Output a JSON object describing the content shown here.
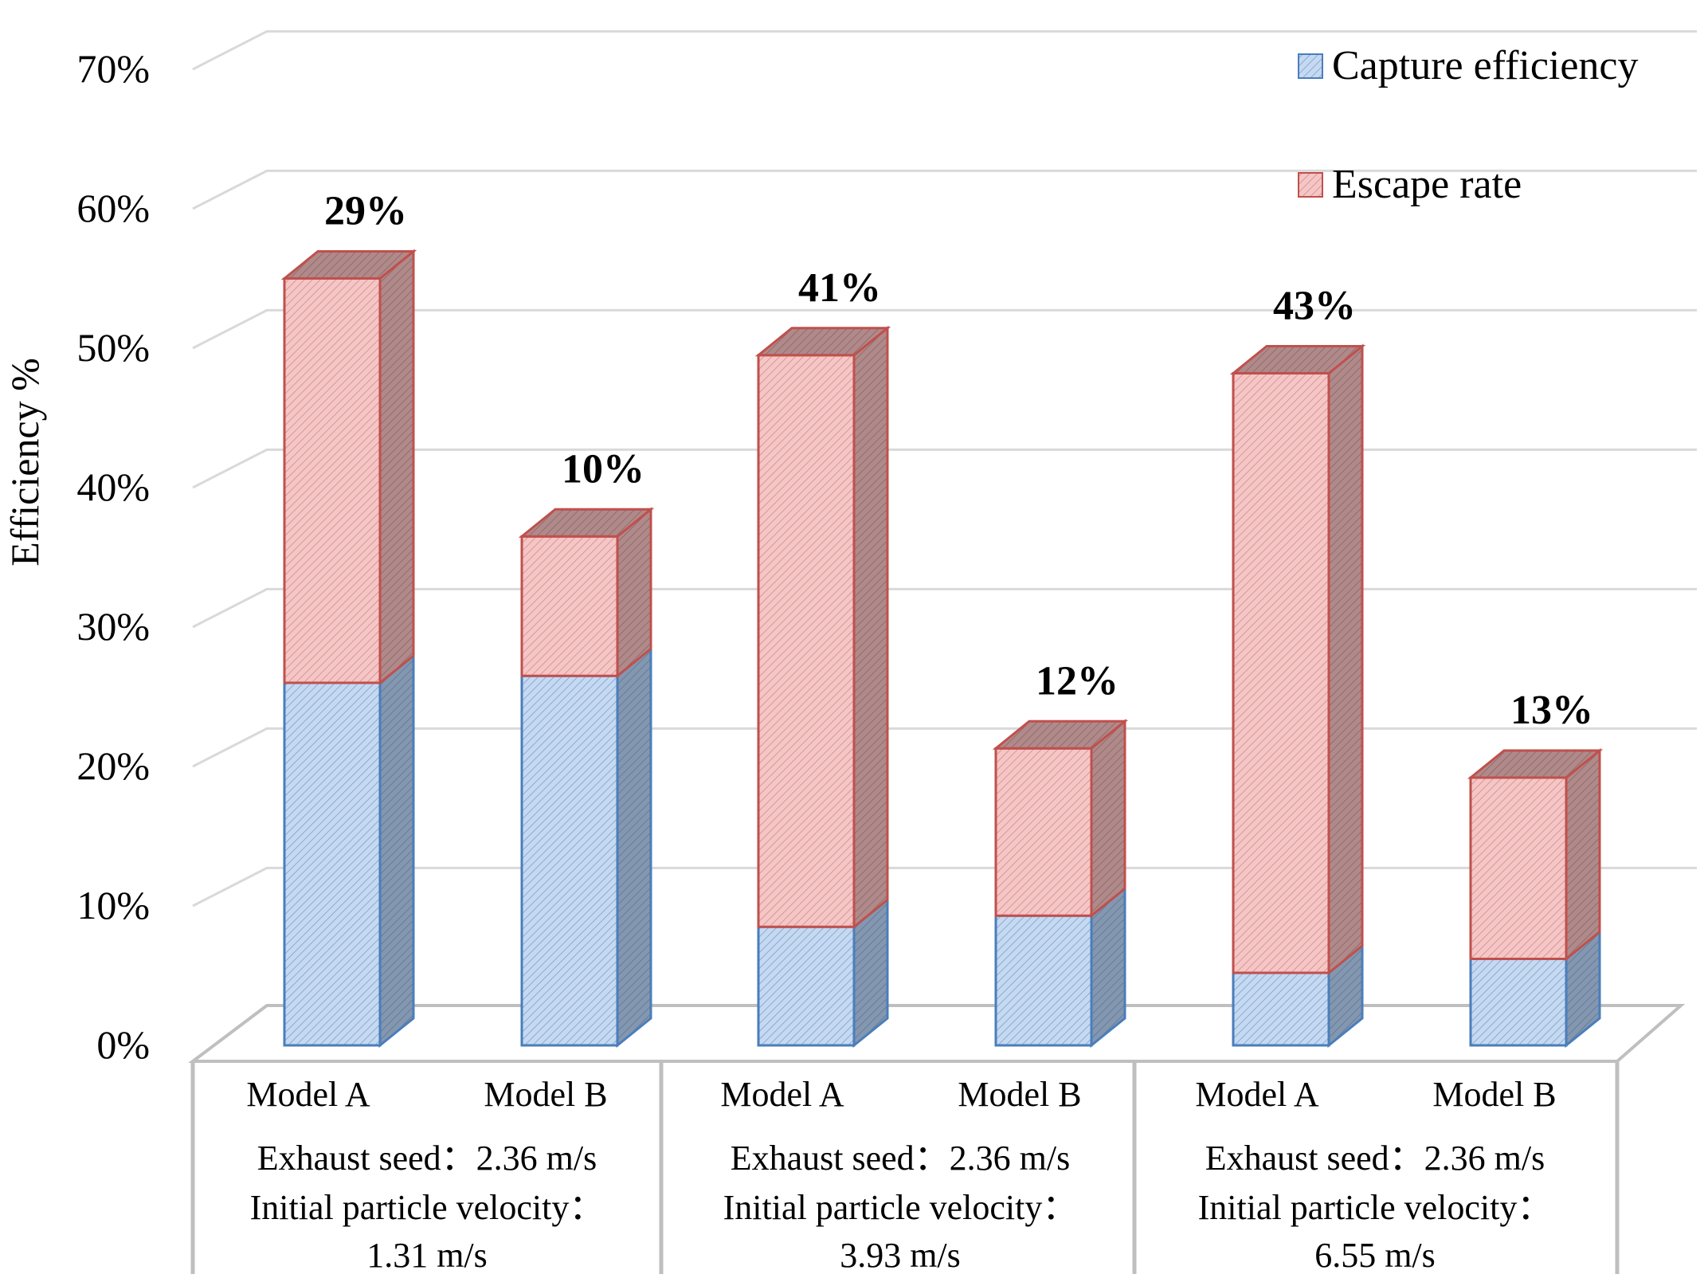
{
  "chart_data": {
    "type": "bar",
    "stacked": true,
    "three_d": true,
    "title": "",
    "xlabel": "",
    "ylabel": "Efficiency %",
    "ylim": [
      0,
      70
    ],
    "ytick_step": 10,
    "ytick_suffix": "%",
    "grid": true,
    "legend_position": "top-right",
    "categories": [
      "Model A",
      "Model B",
      "Model A",
      "Model B",
      "Model A",
      "Model B"
    ],
    "groups": [
      {
        "lines": [
          "Exhaust seed：2.36 m/s",
          "Initial particle velocity：",
          "1.31 m/s"
        ]
      },
      {
        "lines": [
          "Exhaust seed：2.36 m/s",
          "Initial particle velocity：",
          "3.93 m/s"
        ]
      },
      {
        "lines": [
          "Exhaust seed：2.36 m/s",
          "Initial particle velocity：",
          "6.55 m/s"
        ]
      }
    ],
    "series": [
      {
        "name": "Capture efficiency",
        "values": [
          26,
          26.5,
          8.5,
          9.3,
          5.2,
          6.2
        ]
      },
      {
        "name": "Escape rate",
        "values": [
          29,
          10,
          41,
          12,
          43,
          13
        ]
      }
    ],
    "data_labels": [
      "29%",
      "10%",
      "41%",
      "12%",
      "43%",
      "13%"
    ]
  },
  "colors": {
    "capture_fill": "#c5d9f1",
    "capture_stroke": "#4a7ebb",
    "capture_side": "#8497b0",
    "escape_fill": "#f5c6c6",
    "escape_stroke": "#c0504d",
    "escape_side": "#b08a8a",
    "grid": "#d9d9d9",
    "axis_box": "#bfbfbf"
  }
}
